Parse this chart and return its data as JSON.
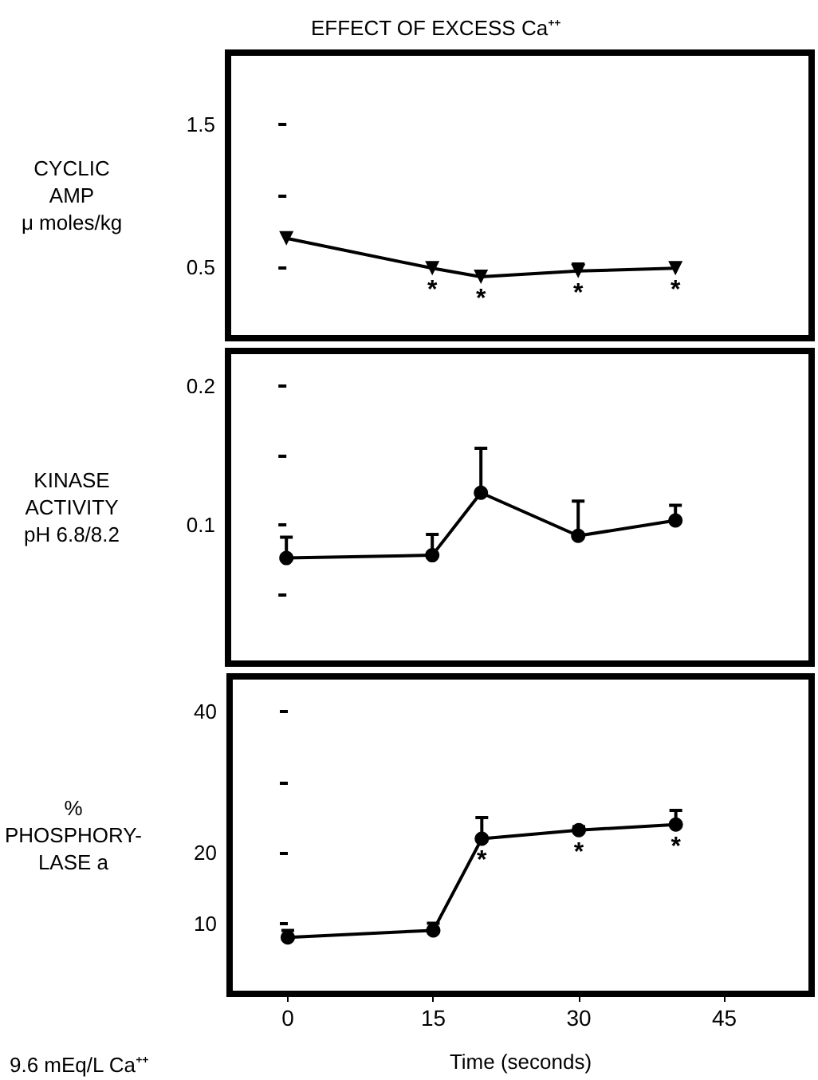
{
  "chart_data": [
    {
      "type": "line",
      "title": "EFFECT OF EXCESS Ca⁺⁺",
      "ylabel": "CYCLIC\nAMP\nμ moles/kg",
      "x": [
        0,
        15,
        20,
        30,
        40
      ],
      "values": [
        0.7,
        0.49,
        0.43,
        0.47,
        0.49
      ],
      "errors": [
        null,
        null,
        null,
        [
          0.47,
          0.52
        ],
        null
      ],
      "color": "#000000",
      "marker": "triangle",
      "xlim": [
        -6,
        54
      ],
      "xticks": [
        0,
        15,
        30,
        45
      ],
      "ylim": [
        0,
        2
      ],
      "yticks": [
        0.5,
        {
          "value": 1.0,
          "label": null
        },
        1.5
      ],
      "tick_labels": "y",
      "annotations": [
        {
          "text": "*",
          "x": 15,
          "y": 0.49
        },
        {
          "text": "*",
          "x": 20,
          "y": 0.43
        },
        {
          "text": "*",
          "x": 30,
          "y": 0.47
        },
        {
          "text": "*",
          "x": 40,
          "y": 0.49
        }
      ]
    },
    {
      "type": "line",
      "ylabel": "KINASE\nACTIVITY\npH 6.8/8.2",
      "x": [
        0,
        15,
        20,
        30,
        40
      ],
      "values": [
        0.076,
        0.078,
        0.123,
        0.092,
        0.103
      ],
      "errors": [
        [
          0.076,
          0.091
        ],
        [
          0.078,
          0.093
        ],
        [
          0.123,
          0.155
        ],
        [
          0.092,
          0.117
        ],
        [
          0.103,
          0.114
        ]
      ],
      "color": "#000000",
      "marker": "circle",
      "xlim": [
        -6,
        54
      ],
      "xticks": [
        0,
        15,
        30,
        45
      ],
      "ylim": [
        0,
        0.225
      ],
      "yticks": [
        {
          "value": 0.05,
          "label": null
        },
        0.1,
        {
          "value": 0.15,
          "label": null
        },
        0.2
      ],
      "tick_labels": "y"
    },
    {
      "type": "line",
      "ylabel": "%\nPHOSPHORY-\nLASE a",
      "xlabel": "Time (seconds)",
      "x": [
        0,
        15,
        20,
        30,
        40
      ],
      "values": [
        8,
        9,
        22,
        23.2,
        24
      ],
      "errors": [
        [
          8,
          9
        ],
        [
          9,
          10
        ],
        [
          22,
          25
        ],
        [
          23.2,
          23.7
        ],
        [
          24,
          26
        ]
      ],
      "color": "#000000",
      "marker": "circle",
      "xlim": [
        -6,
        54
      ],
      "xticks": [
        0,
        15,
        30,
        45
      ],
      "ylim": [
        0,
        45
      ],
      "yticks": [
        10,
        20,
        {
          "value": 30,
          "label": null
        },
        40
      ],
      "annotations": [
        {
          "text": "*",
          "x": 20,
          "y": 22
        },
        {
          "text": "*",
          "x": 30,
          "y": 23.2
        },
        {
          "text": "*",
          "x": 40,
          "y": 24
        },
        "9.6 mEq/L Ca⁺⁺"
      ]
    }
  ]
}
